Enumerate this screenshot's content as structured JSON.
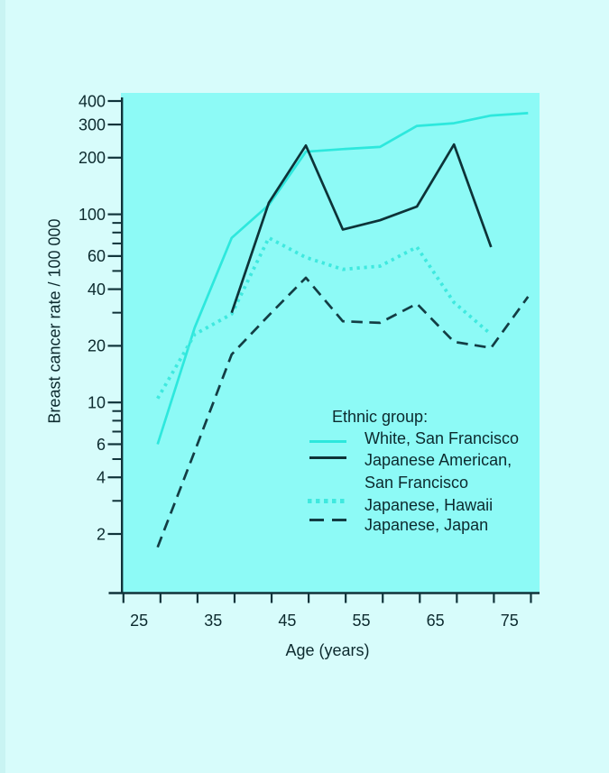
{
  "page": {
    "background": "#d7fcfb",
    "left_edge_tint": "#c9f4f3"
  },
  "chart_data": {
    "type": "line",
    "title": "",
    "x_axis": {
      "label": "Age (years)",
      "scale": "linear",
      "range": [
        25,
        80
      ],
      "ticks": [
        25,
        30,
        35,
        40,
        45,
        50,
        55,
        60,
        65,
        70,
        75,
        80
      ],
      "labeled_ticks": [
        25,
        35,
        45,
        55,
        65,
        75
      ]
    },
    "y_axis": {
      "label": "Breast cancer rate / 100 000",
      "scale": "log",
      "range": [
        1.5,
        400
      ],
      "labeled_ticks": [
        400,
        300,
        200,
        100,
        60,
        40,
        20,
        10,
        6,
        4,
        2
      ],
      "minor_ticks": [
        90,
        80,
        70,
        50,
        30,
        9,
        8,
        7,
        5,
        3
      ]
    },
    "legend": {
      "heading": "Ethnic group:",
      "position": "inside-lower-right"
    },
    "series": [
      {
        "name": "White, San Francisco",
        "legend_label": "White, San Francisco",
        "line_style": "solid",
        "color": "#2de8dd",
        "points": [
          [
            27.5,
            6
          ],
          [
            32.5,
            25
          ],
          [
            37.5,
            75
          ],
          [
            42.5,
            112
          ],
          [
            47.5,
            215
          ],
          [
            52.5,
            222
          ],
          [
            57.5,
            228
          ],
          [
            62.5,
            295
          ],
          [
            67.5,
            305
          ],
          [
            72.5,
            335
          ],
          [
            77.5,
            345
          ]
        ]
      },
      {
        "name": "Japanese American, San Francisco",
        "legend_label": "Japanese American,\nSan Francisco",
        "line_style": "solid",
        "color": "#0d3338",
        "points": [
          [
            37.5,
            30
          ],
          [
            42.5,
            115
          ],
          [
            47.5,
            232
          ],
          [
            52.5,
            83
          ],
          [
            57.5,
            93
          ],
          [
            62.5,
            110
          ],
          [
            67.5,
            235
          ],
          [
            72.5,
            67
          ]
        ]
      },
      {
        "name": "Japanese, Hawaii",
        "legend_label": "Japanese, Hawaii",
        "line_style": "dotted",
        "color": "#3fe9df",
        "points": [
          [
            27.5,
            10.5
          ],
          [
            32.5,
            23
          ],
          [
            37.5,
            29.5
          ],
          [
            42.5,
            75
          ],
          [
            47.5,
            59
          ],
          [
            52.5,
            51
          ],
          [
            57.5,
            53
          ],
          [
            62.5,
            67
          ],
          [
            67.5,
            34
          ],
          [
            72.5,
            23
          ]
        ]
      },
      {
        "name": "Japanese, Japan",
        "legend_label": "Japanese, Japan",
        "line_style": "dashed",
        "color": "#133d44",
        "points": [
          [
            27.5,
            1.7
          ],
          [
            32.5,
            5.5
          ],
          [
            37.5,
            18
          ],
          [
            42.5,
            29
          ],
          [
            47.5,
            46
          ],
          [
            52.5,
            27
          ],
          [
            57.5,
            26.5
          ],
          [
            62.5,
            33.5
          ],
          [
            67.5,
            21
          ],
          [
            72.5,
            19.5
          ],
          [
            77.5,
            36.5
          ]
        ]
      }
    ],
    "colors": {
      "plot_bg": "#8dfaf6",
      "axis": "#10333a",
      "text": "#0c2a2e"
    }
  }
}
